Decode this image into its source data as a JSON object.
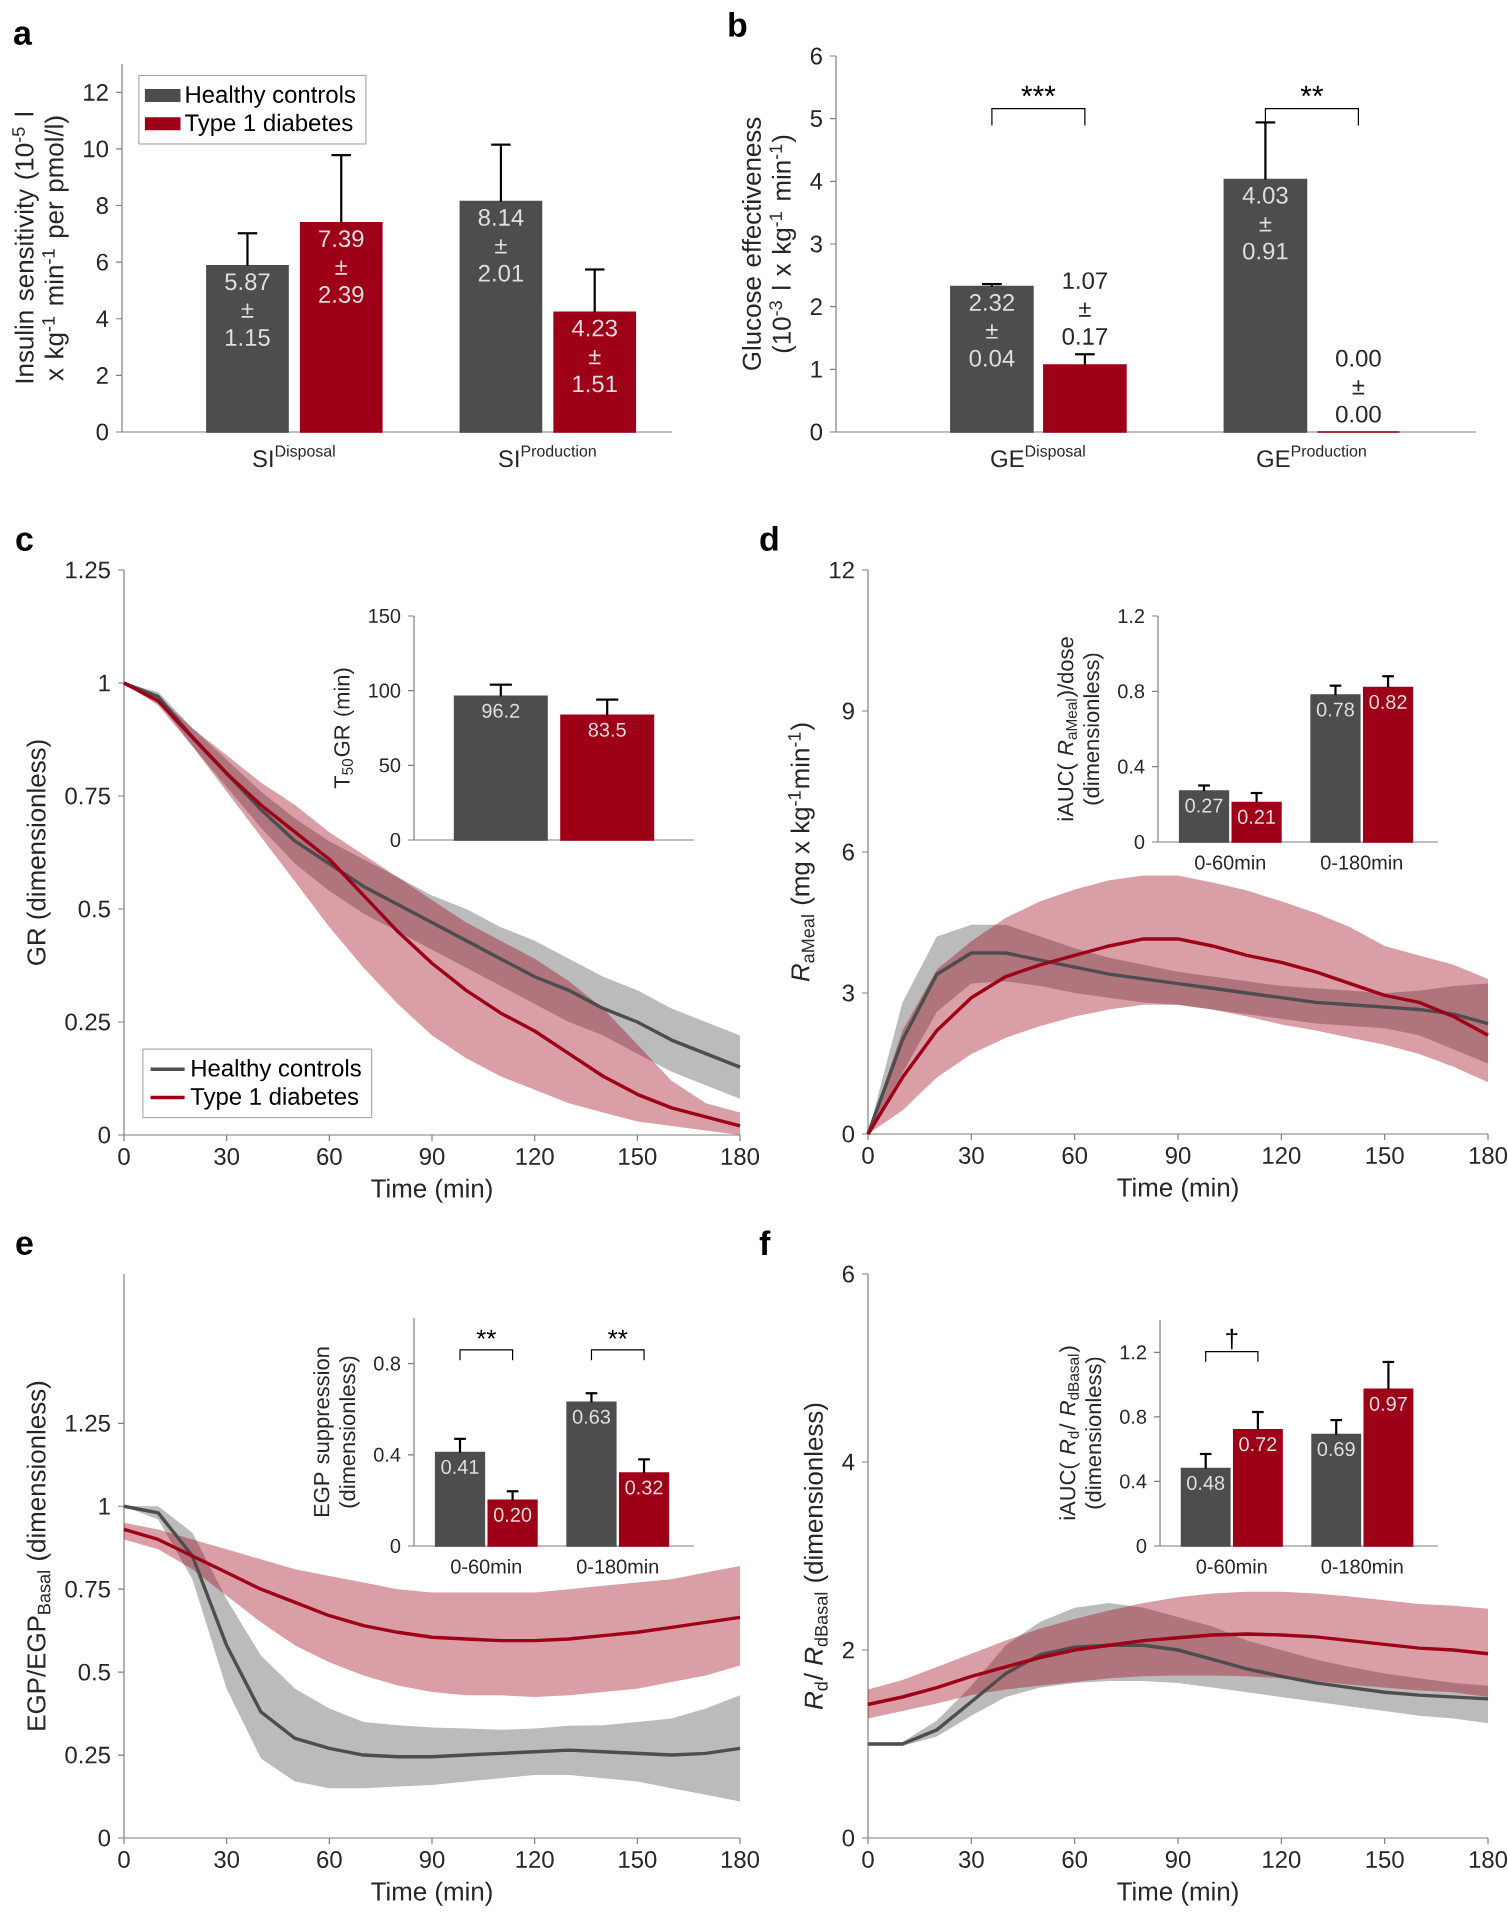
{
  "chart_data": [
    {
      "type": "bar",
      "title": "a",
      "ylabel": "Insulin sensitivity (10$^{-5}$ l x kg$^{-1}$ min$^{-1}$ per pmol/l)",
      "categories": [
        "\\mathrm{SI}^{\\mathrm{Disposal}}",
        "\\mathrm{SI}^{\\mathrm{Production}}"
      ],
      "ylim": [
        0,
        13
      ],
      "yticks": [
        0,
        2,
        4,
        6,
        8,
        10,
        12
      ],
      "legend": "top left",
      "series": [
        {
          "name": "Healthy controls",
          "color": "#4d4d4d",
          "values": [
            5.87,
            8.14
          ],
          "errors": [
            [
              5.87,
              7.02
            ],
            [
              8.14,
              10.15
            ]
          ],
          "value_labels": [
            "5.87 ± 1.15",
            "8.14 ± 2.01"
          ]
        },
        {
          "name": "Type 1 diabetes",
          "color": "#9e0018",
          "values": [
            7.39,
            4.23
          ],
          "errors": [
            [
              7.39,
              9.78
            ],
            [
              4.23,
              5.74
            ]
          ],
          "value_labels": [
            "7.39 ± 2.39",
            "4.23 ± 1.51"
          ]
        }
      ]
    },
    {
      "type": "bar",
      "title": "b",
      "ylabel": "Glucose effectiveness (10$^{-3}$ l x kg$^{-1}$ min$^{-1}$)",
      "categories": [
        "\\mathrm{GE}^{\\mathrm{Disposal}}",
        "\\mathrm{GE}^{\\mathrm{Production}}"
      ],
      "ylim": [
        0,
        6
      ],
      "yticks": [
        0,
        1,
        2,
        3,
        4,
        5,
        6
      ],
      "annotations": [
        "***",
        "**"
      ],
      "series": [
        {
          "color": "#4d4d4d",
          "values": [
            2.32,
            4.03
          ],
          "errors": [
            [
              2.32,
              2.36
            ],
            [
              4.03,
              4.94
            ]
          ],
          "value_labels": [
            "2.32 ± 0.04",
            "4.03 ± 0.91"
          ]
        },
        {
          "color": "#9e0018",
          "values": [
            1.07,
            0.0
          ],
          "errors": [
            [
              1.07,
              1.24
            ],
            null
          ],
          "value_labels": [
            "1.07 ± 0.17",
            "0.00 ± 0.00"
          ]
        }
      ]
    },
    {
      "type": "line",
      "title": "c",
      "xlabel": "Time (min)",
      "ylabel": "GR (dimensionless)",
      "xlim": [
        0,
        180
      ],
      "xticks": [
        0,
        30,
        60,
        90,
        120,
        150,
        180
      ],
      "ylim": [
        0,
        1.25
      ],
      "yticks": [
        0,
        0.25,
        0.5,
        0.75,
        1,
        1.25
      ],
      "legend": "bottom left",
      "x": [
        0,
        10,
        20,
        30,
        40,
        50,
        60,
        70,
        80,
        90,
        100,
        110,
        120,
        130,
        140,
        150,
        160,
        170,
        180
      ],
      "series": [
        {
          "name": "Healthy controls",
          "color": "#4d4d4d",
          "values": [
            1,
            0.97,
            0.88,
            0.8,
            0.72,
            0.65,
            0.6,
            0.55,
            0.51,
            0.47,
            0.43,
            0.39,
            0.35,
            0.32,
            0.28,
            0.25,
            0.21,
            0.18,
            0.15
          ],
          "upper": [
            1,
            0.98,
            0.9,
            0.83,
            0.76,
            0.7,
            0.65,
            0.61,
            0.57,
            0.53,
            0.5,
            0.46,
            0.43,
            0.39,
            0.35,
            0.32,
            0.28,
            0.25,
            0.22
          ],
          "lower": [
            1,
            0.96,
            0.86,
            0.77,
            0.68,
            0.6,
            0.54,
            0.49,
            0.45,
            0.41,
            0.37,
            0.33,
            0.29,
            0.25,
            0.22,
            0.18,
            0.14,
            0.11,
            0.08
          ]
        },
        {
          "name": "Type 1 diabetes",
          "color": "#9e0018",
          "values": [
            1,
            0.96,
            0.88,
            0.8,
            0.73,
            0.67,
            0.61,
            0.53,
            0.45,
            0.38,
            0.32,
            0.27,
            0.23,
            0.18,
            0.13,
            0.09,
            0.06,
            0.04,
            0.02
          ],
          "upper": [
            1,
            0.97,
            0.9,
            0.84,
            0.78,
            0.73,
            0.67,
            0.62,
            0.57,
            0.52,
            0.47,
            0.43,
            0.39,
            0.34,
            0.28,
            0.2,
            0.12,
            0.07,
            0.05
          ],
          "lower": [
            1,
            0.95,
            0.86,
            0.76,
            0.66,
            0.56,
            0.46,
            0.37,
            0.29,
            0.22,
            0.17,
            0.13,
            0.1,
            0.07,
            0.05,
            0.03,
            0.02,
            0.01,
            0
          ]
        }
      ]
    },
    {
      "type": "bar",
      "ylabel": "T$_{50}$GR (min)",
      "categories": [
        null
      ],
      "ylim": [
        0,
        150
      ],
      "yticks": [
        0,
        50,
        100,
        150
      ],
      "series": [
        {
          "color": "#4d4d4d",
          "values": [
            96.2
          ],
          "errors": [
            [
              96.2,
              104
            ]
          ],
          "value_labels": [
            "96.2"
          ]
        },
        {
          "color": "#9e0018",
          "values": [
            83.5
          ],
          "errors": [
            [
              83.5,
              94
            ]
          ],
          "value_labels": [
            "83.5"
          ]
        }
      ]
    },
    {
      "type": "line",
      "title": "d",
      "xlabel": "Time (min)",
      "ylabel": "*R*$_{aMeal}$ (mg x kg$^{-1}$min$^{-1}$)",
      "xlim": [
        0,
        180
      ],
      "xticks": [
        0,
        30,
        60,
        90,
        120,
        150,
        180
      ],
      "ylim": [
        0,
        12
      ],
      "yticks": [
        0,
        3,
        6,
        9,
        12
      ],
      "x": [
        0,
        10,
        20,
        30,
        40,
        50,
        60,
        70,
        80,
        90,
        100,
        110,
        120,
        130,
        140,
        150,
        160,
        170,
        180
      ],
      "series": [
        {
          "color": "#4d4d4d",
          "values": [
            0,
            2.0,
            3.4,
            3.85,
            3.85,
            3.7,
            3.55,
            3.4,
            3.3,
            3.2,
            3.1,
            3.0,
            2.9,
            2.8,
            2.75,
            2.7,
            2.65,
            2.55,
            2.35
          ],
          "upper": [
            0,
            2.8,
            4.2,
            4.45,
            4.45,
            4.2,
            3.95,
            3.75,
            3.6,
            3.45,
            3.35,
            3.25,
            3.15,
            3.1,
            3.05,
            3.0,
            3.05,
            3.15,
            3.2
          ],
          "lower": [
            0,
            1.3,
            2.6,
            3.2,
            3.25,
            3.15,
            3.0,
            2.9,
            2.8,
            2.75,
            2.65,
            2.55,
            2.45,
            2.35,
            2.3,
            2.25,
            2.1,
            1.8,
            1.5
          ]
        },
        {
          "color": "#9e0018",
          "values": [
            0,
            1.2,
            2.2,
            2.9,
            3.35,
            3.6,
            3.8,
            4.0,
            4.15,
            4.15,
            4.0,
            3.8,
            3.65,
            3.45,
            3.2,
            2.95,
            2.8,
            2.5,
            2.1
          ],
          "upper": [
            0,
            2.2,
            3.5,
            4.1,
            4.6,
            4.95,
            5.2,
            5.4,
            5.5,
            5.5,
            5.35,
            5.18,
            4.95,
            4.7,
            4.4,
            4.0,
            3.8,
            3.6,
            3.3
          ],
          "lower": [
            0,
            0.5,
            1.2,
            1.7,
            2.05,
            2.3,
            2.5,
            2.65,
            2.75,
            2.75,
            2.65,
            2.5,
            2.33,
            2.2,
            2.05,
            1.9,
            1.7,
            1.43,
            1.1
          ]
        }
      ]
    },
    {
      "type": "bar",
      "ylabel": "iAUC( *R*$_{aMeal}$)/dose (dimensionless)",
      "categories": [
        "0-60min",
        "0-180min"
      ],
      "ylim": [
        0,
        1.2
      ],
      "yticks": [
        0,
        0.4,
        0.8,
        1.2
      ],
      "series": [
        {
          "color": "#4d4d4d",
          "values": [
            0.27,
            0.78
          ],
          "errors": [
            [
              0.27,
              0.3
            ],
            [
              0.78,
              0.83
            ]
          ],
          "value_labels": [
            "0.27",
            "0.78"
          ]
        },
        {
          "color": "#9e0018",
          "values": [
            0.21,
            0.82
          ],
          "errors": [
            [
              0.21,
              0.26
            ],
            [
              0.82,
              0.88
            ]
          ],
          "value_labels": [
            "0.21",
            "0.82"
          ]
        }
      ]
    },
    {
      "type": "line",
      "title": "e",
      "xlabel": "Time (min)",
      "ylabel": "EGP/EGP$_{Basal}$ (dimensionless)",
      "xlim": [
        0,
        180
      ],
      "xticks": [
        0,
        30,
        60,
        90,
        120,
        150,
        180
      ],
      "ylim": [
        0,
        1.7
      ],
      "yticks": [
        0,
        0.25,
        0.5,
        0.75,
        1,
        1.25
      ],
      "x": [
        0,
        10,
        20,
        30,
        40,
        50,
        60,
        70,
        80,
        90,
        100,
        110,
        120,
        130,
        140,
        150,
        160,
        170,
        180
      ],
      "series": [
        {
          "color": "#4d4d4d",
          "values": [
            1,
            0.98,
            0.85,
            0.58,
            0.38,
            0.3,
            0.27,
            0.25,
            0.245,
            0.245,
            0.25,
            0.255,
            0.26,
            0.265,
            0.26,
            0.255,
            0.25,
            0.255,
            0.27
          ],
          "upper": [
            1,
            1.0,
            0.92,
            0.72,
            0.55,
            0.45,
            0.39,
            0.35,
            0.34,
            0.333,
            0.33,
            0.326,
            0.33,
            0.338,
            0.34,
            0.35,
            0.36,
            0.39,
            0.43
          ],
          "lower": [
            1,
            0.96,
            0.78,
            0.45,
            0.24,
            0.17,
            0.15,
            0.15,
            0.155,
            0.16,
            0.17,
            0.18,
            0.19,
            0.19,
            0.18,
            0.17,
            0.15,
            0.13,
            0.11
          ]
        },
        {
          "color": "#9e0018",
          "values": [
            0.93,
            0.9,
            0.85,
            0.8,
            0.75,
            0.71,
            0.67,
            0.64,
            0.62,
            0.605,
            0.6,
            0.595,
            0.595,
            0.6,
            0.61,
            0.62,
            0.635,
            0.65,
            0.665
          ],
          "upper": [
            0.95,
            0.93,
            0.9,
            0.87,
            0.84,
            0.81,
            0.79,
            0.77,
            0.75,
            0.74,
            0.74,
            0.74,
            0.74,
            0.75,
            0.76,
            0.77,
            0.78,
            0.8,
            0.82
          ],
          "lower": [
            0.9,
            0.87,
            0.81,
            0.73,
            0.65,
            0.58,
            0.53,
            0.49,
            0.46,
            0.44,
            0.43,
            0.43,
            0.425,
            0.43,
            0.44,
            0.45,
            0.47,
            0.49,
            0.52
          ]
        }
      ]
    },
    {
      "type": "bar",
      "ylabel": "EGP suppression (dimensionless)",
      "categories": [
        "0-60min",
        "0-180min"
      ],
      "ylim": [
        0,
        1
      ],
      "yticks": [
        0,
        0.4,
        0.8
      ],
      "annotations": [
        "**",
        "**"
      ],
      "series": [
        {
          "color": "#4d4d4d",
          "values": [
            0.41,
            0.63
          ],
          "errors": [
            [
              0.41,
              0.47
            ],
            [
              0.63,
              0.67
            ]
          ],
          "value_labels": [
            "0.41",
            "0.63"
          ]
        },
        {
          "color": "#9e0018",
          "values": [
            0.2,
            0.32
          ],
          "errors": [
            [
              0.2,
              0.24
            ],
            [
              0.32,
              0.38
            ]
          ],
          "value_labels": [
            "0.20",
            "0.32"
          ]
        }
      ]
    },
    {
      "type": "line",
      "title": "f",
      "xlabel": "Time (min)",
      "ylabel": "*R*$_{d}$/ *R*$_{dBasal}$ (dimensionless)",
      "xlim": [
        0,
        180
      ],
      "xticks": [
        0,
        30,
        60,
        90,
        120,
        150,
        180
      ],
      "ylim": [
        0,
        6
      ],
      "yticks": [
        0,
        2,
        4,
        6
      ],
      "x": [
        0,
        10,
        20,
        30,
        40,
        50,
        60,
        70,
        80,
        90,
        100,
        110,
        120,
        130,
        140,
        150,
        160,
        170,
        180
      ],
      "series": [
        {
          "color": "#4d4d4d",
          "values": [
            1.0,
            1.0,
            1.15,
            1.45,
            1.75,
            1.95,
            2.03,
            2.05,
            2.05,
            2.0,
            1.9,
            1.8,
            1.72,
            1.65,
            1.6,
            1.55,
            1.52,
            1.5,
            1.48
          ],
          "upper": [
            1.0,
            1.02,
            1.25,
            1.62,
            2.05,
            2.3,
            2.45,
            2.5,
            2.45,
            2.35,
            2.25,
            2.1,
            2.0,
            1.9,
            1.82,
            1.75,
            1.7,
            1.65,
            1.62
          ],
          "lower": [
            1.0,
            0.98,
            1.08,
            1.3,
            1.5,
            1.6,
            1.65,
            1.67,
            1.67,
            1.65,
            1.6,
            1.55,
            1.5,
            1.45,
            1.4,
            1.35,
            1.3,
            1.27,
            1.22
          ]
        },
        {
          "color": "#9e0018",
          "values": [
            1.42,
            1.5,
            1.6,
            1.72,
            1.82,
            1.92,
            2.0,
            2.05,
            2.1,
            2.13,
            2.16,
            2.17,
            2.16,
            2.14,
            2.1,
            2.06,
            2.02,
            2.0,
            1.96
          ],
          "upper": [
            1.58,
            1.68,
            1.82,
            1.96,
            2.1,
            2.23,
            2.33,
            2.42,
            2.5,
            2.56,
            2.6,
            2.62,
            2.62,
            2.6,
            2.57,
            2.53,
            2.49,
            2.47,
            2.44
          ],
          "lower": [
            1.27,
            1.35,
            1.43,
            1.52,
            1.58,
            1.62,
            1.66,
            1.7,
            1.72,
            1.73,
            1.73,
            1.72,
            1.7,
            1.67,
            1.63,
            1.6,
            1.57,
            1.55,
            1.5
          ]
        }
      ]
    },
    {
      "type": "bar",
      "ylabel": "iAUC( *R*$_{d}$/ *R*$_{dBasal}$) (dimensionless)",
      "categories": [
        "0-60min",
        "0-180min"
      ],
      "ylim": [
        0,
        1.4
      ],
      "yticks": [
        0,
        0.4,
        0.8,
        1.2
      ],
      "annotations": [
        "†"
      ],
      "series": [
        {
          "color": "#4d4d4d",
          "values": [
            0.48,
            0.69
          ],
          "errors": [
            [
              0.48,
              0.57
            ],
            [
              0.69,
              0.78
            ]
          ],
          "value_labels": [
            "0.48",
            "0.69"
          ]
        },
        {
          "color": "#9e0018",
          "values": [
            0.72,
            0.97
          ],
          "errors": [
            [
              0.72,
              0.83
            ],
            [
              0.97,
              1.14
            ]
          ],
          "value_labels": [
            "0.72",
            "0.97"
          ]
        }
      ]
    }
  ]
}
